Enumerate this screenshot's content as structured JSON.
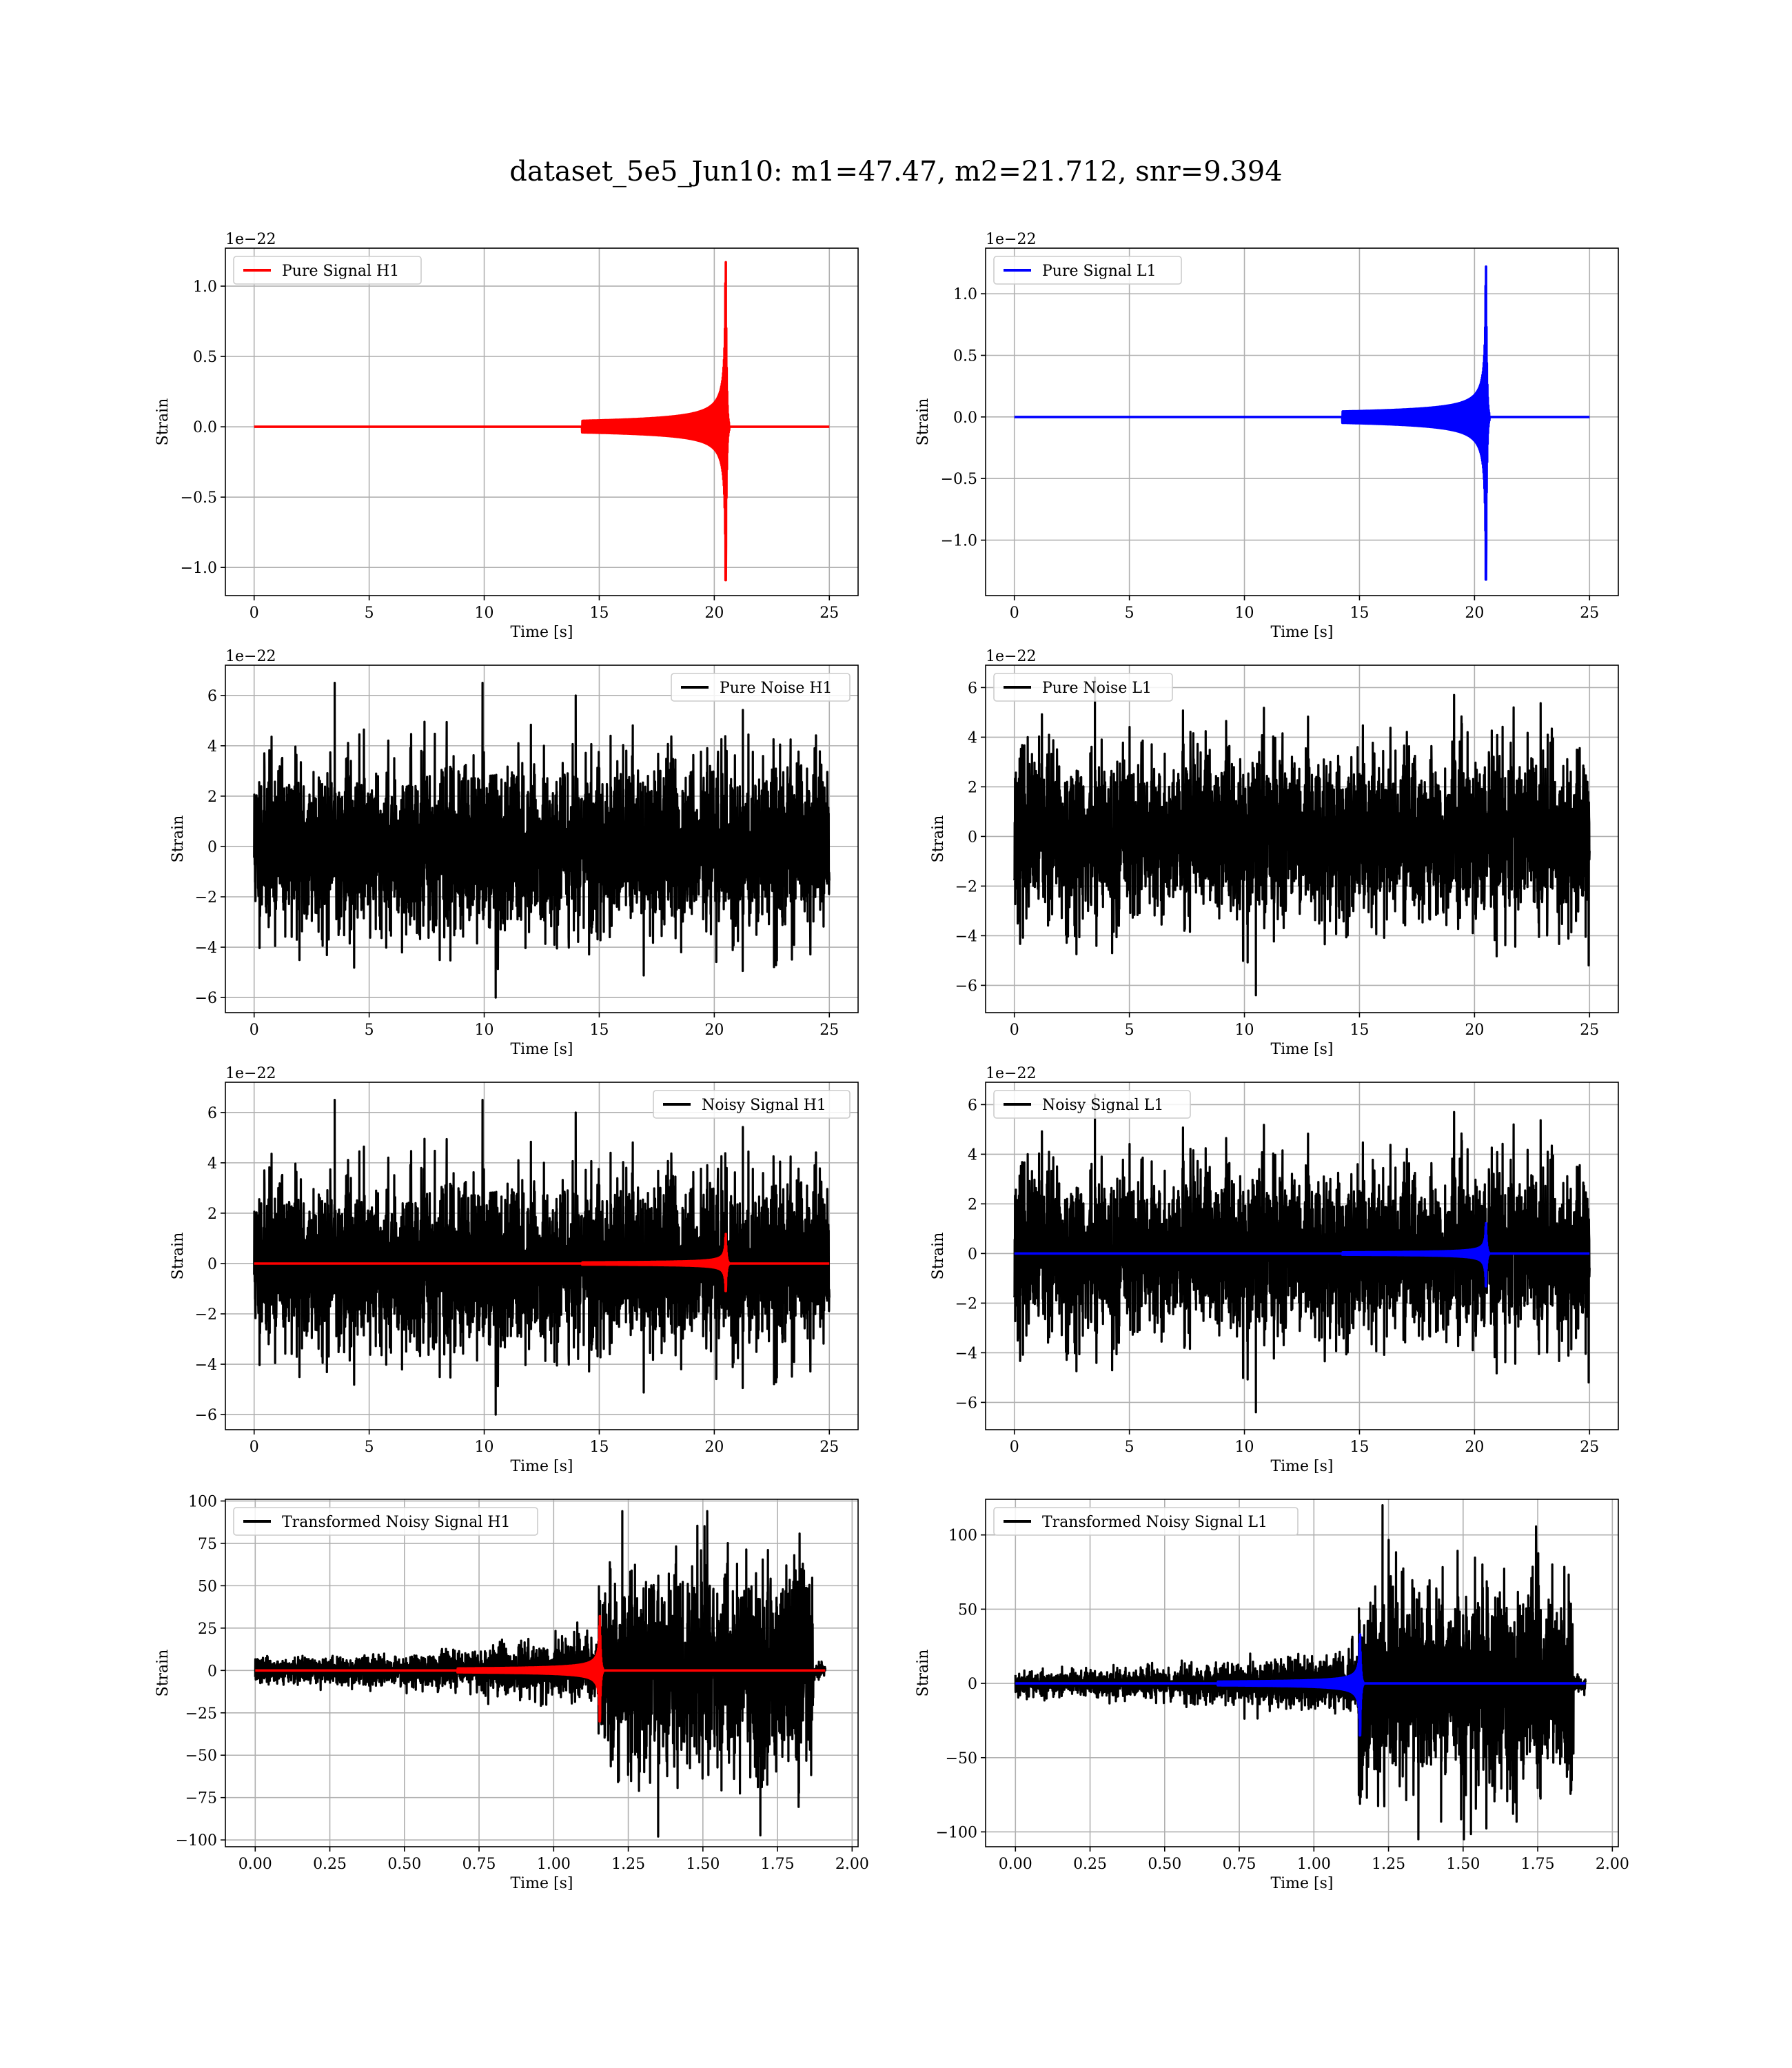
{
  "suptitle": "dataset_5e5_Jun10: m1=47.47, m2=21.712, snr=9.394",
  "colors": {
    "h1_signal": "#ff0000",
    "l1_signal": "#0000ff",
    "noise": "#000000"
  },
  "chart_data": [
    {
      "type": "line",
      "name": "pure-signal-h1",
      "xlabel": "Time [s]",
      "ylabel": "Strain",
      "offset_text": "1e−22",
      "xlim": [
        -1.25,
        26.25
      ],
      "ylim": [
        -1.2,
        1.27
      ],
      "xticks": [
        0,
        5,
        10,
        15,
        20,
        25
      ],
      "xtick_labels": [
        "0",
        "5",
        "10",
        "15",
        "20",
        "25"
      ],
      "yticks": [
        -1.0,
        -0.5,
        0.0,
        0.5,
        1.0
      ],
      "ytick_labels": [
        "−1.0",
        "−0.5",
        "0.0",
        "0.5",
        "1.0"
      ],
      "legend": {
        "position": "upper-left",
        "entries": [
          {
            "label": "Pure Signal H1",
            "color": "#ff0000"
          }
        ]
      },
      "series": [
        {
          "name": "Pure Signal H1",
          "color": "#ff0000",
          "kind": "chirp",
          "x_start": 0,
          "x_end": 25,
          "merger": 20.5,
          "peak_pos": 1.17,
          "peak_neg": -1.09
        }
      ]
    },
    {
      "type": "line",
      "name": "pure-signal-l1",
      "xlabel": "Time [s]",
      "ylabel": "Strain",
      "offset_text": "1e−22",
      "xlim": [
        -1.25,
        26.25
      ],
      "ylim": [
        -1.45,
        1.37
      ],
      "xticks": [
        0,
        5,
        10,
        15,
        20,
        25
      ],
      "xtick_labels": [
        "0",
        "5",
        "10",
        "15",
        "20",
        "25"
      ],
      "yticks": [
        -1.0,
        -0.5,
        0.0,
        0.5,
        1.0
      ],
      "ytick_labels": [
        "−1.0",
        "−0.5",
        "0.0",
        "0.5",
        "1.0"
      ],
      "legend": {
        "position": "upper-left",
        "entries": [
          {
            "label": "Pure Signal L1",
            "color": "#0000ff"
          }
        ]
      },
      "series": [
        {
          "name": "Pure Signal L1",
          "color": "#0000ff",
          "kind": "chirp",
          "x_start": 0,
          "x_end": 25,
          "merger": 20.5,
          "peak_pos": 1.22,
          "peak_neg": -1.32
        }
      ]
    },
    {
      "type": "line",
      "name": "pure-noise-h1",
      "xlabel": "Time [s]",
      "ylabel": "Strain",
      "offset_text": "1e−22",
      "xlim": [
        -1.25,
        26.25
      ],
      "ylim": [
        -6.6,
        7.2
      ],
      "xticks": [
        0,
        5,
        10,
        15,
        20,
        25
      ],
      "xtick_labels": [
        "0",
        "5",
        "10",
        "15",
        "20",
        "25"
      ],
      "yticks": [
        -6,
        -4,
        -2,
        0,
        2,
        4,
        6
      ],
      "ytick_labels": [
        "−6",
        "−4",
        "−2",
        "0",
        "2",
        "4",
        "6"
      ],
      "legend": {
        "position": "upper-right",
        "entries": [
          {
            "label": "Pure Noise H1",
            "color": "#000000"
          }
        ]
      },
      "series": [
        {
          "name": "Pure Noise H1",
          "color": "#000000",
          "kind": "noise",
          "x_start": 0,
          "x_end": 25,
          "sigma": 1.6,
          "peak_pos": 6.5,
          "peak_neg": -6.0,
          "seed": 11
        }
      ]
    },
    {
      "type": "line",
      "name": "pure-noise-l1",
      "xlabel": "Time [s]",
      "ylabel": "Strain",
      "offset_text": "1e−22",
      "xlim": [
        -1.25,
        26.25
      ],
      "ylim": [
        -7.1,
        6.9
      ],
      "xticks": [
        0,
        5,
        10,
        15,
        20,
        25
      ],
      "xtick_labels": [
        "0",
        "5",
        "10",
        "15",
        "20",
        "25"
      ],
      "yticks": [
        -6,
        -4,
        -2,
        0,
        2,
        4,
        6
      ],
      "ytick_labels": [
        "−6",
        "−4",
        "−2",
        "0",
        "2",
        "4",
        "6"
      ],
      "legend": {
        "position": "upper-left",
        "entries": [
          {
            "label": "Pure Noise L1",
            "color": "#000000"
          }
        ]
      },
      "series": [
        {
          "name": "Pure Noise L1",
          "color": "#000000",
          "kind": "noise",
          "x_start": 0,
          "x_end": 25,
          "sigma": 1.6,
          "peak_pos": 6.4,
          "peak_neg": -6.4,
          "seed": 23
        }
      ]
    },
    {
      "type": "line",
      "name": "noisy-signal-h1",
      "xlabel": "Time [s]",
      "ylabel": "Strain",
      "offset_text": "1e−22",
      "xlim": [
        -1.25,
        26.25
      ],
      "ylim": [
        -6.6,
        7.2
      ],
      "xticks": [
        0,
        5,
        10,
        15,
        20,
        25
      ],
      "xtick_labels": [
        "0",
        "5",
        "10",
        "15",
        "20",
        "25"
      ],
      "yticks": [
        -6,
        -4,
        -2,
        0,
        2,
        4,
        6
      ],
      "ytick_labels": [
        "−6",
        "−4",
        "−2",
        "0",
        "2",
        "4",
        "6"
      ],
      "legend": {
        "position": "upper-right",
        "entries": [
          {
            "label": "Noisy Signal H1",
            "color": "#000000"
          }
        ]
      },
      "series": [
        {
          "name": "Noisy Signal H1",
          "color": "#000000",
          "kind": "noise",
          "x_start": 0,
          "x_end": 25,
          "sigma": 1.6,
          "peak_pos": 6.5,
          "peak_neg": -6.0,
          "seed": 11
        },
        {
          "name": "Pure Signal H1",
          "color": "#ff0000",
          "kind": "chirp",
          "x_start": 0,
          "x_end": 25,
          "merger": 20.5,
          "peak_pos": 1.17,
          "peak_neg": -1.09
        }
      ]
    },
    {
      "type": "line",
      "name": "noisy-signal-l1",
      "xlabel": "Time [s]",
      "ylabel": "Strain",
      "offset_text": "1e−22",
      "xlim": [
        -1.25,
        26.25
      ],
      "ylim": [
        -7.1,
        6.9
      ],
      "xticks": [
        0,
        5,
        10,
        15,
        20,
        25
      ],
      "xtick_labels": [
        "0",
        "5",
        "10",
        "15",
        "20",
        "25"
      ],
      "yticks": [
        -6,
        -4,
        -2,
        0,
        2,
        4,
        6
      ],
      "ytick_labels": [
        "−6",
        "−4",
        "−2",
        "0",
        "2",
        "4",
        "6"
      ],
      "legend": {
        "position": "upper-left",
        "entries": [
          {
            "label": "Noisy Signal L1",
            "color": "#000000"
          }
        ]
      },
      "series": [
        {
          "name": "Noisy Signal L1",
          "color": "#000000",
          "kind": "noise",
          "x_start": 0,
          "x_end": 25,
          "sigma": 1.6,
          "peak_pos": 6.4,
          "peak_neg": -6.4,
          "seed": 23
        },
        {
          "name": "Pure Signal L1",
          "color": "#0000ff",
          "kind": "chirp",
          "x_start": 0,
          "x_end": 25,
          "merger": 20.5,
          "peak_pos": 1.22,
          "peak_neg": -1.32
        }
      ]
    },
    {
      "type": "line",
      "name": "transformed-noisy-signal-h1",
      "xlabel": "Time [s]",
      "ylabel": "Strain",
      "offset_text": "",
      "xlim": [
        -0.1,
        2.02
      ],
      "ylim": [
        -104,
        101
      ],
      "xticks": [
        0,
        0.25,
        0.5,
        0.75,
        1.0,
        1.25,
        1.5,
        1.75,
        2.0
      ],
      "xtick_labels": [
        "0.00",
        "0.25",
        "0.50",
        "0.75",
        "1.00",
        "1.25",
        "1.50",
        "1.75",
        "2.00"
      ],
      "yticks": [
        -100,
        -75,
        -50,
        -25,
        0,
        25,
        50,
        75,
        100
      ],
      "ytick_labels": [
        "−100",
        "−75",
        "−50",
        "−25",
        "0",
        "25",
        "50",
        "75",
        "100"
      ],
      "legend": {
        "position": "upper-left",
        "entries": [
          {
            "label": "Transformed Noisy Signal H1",
            "color": "#000000"
          }
        ]
      },
      "series": [
        {
          "name": "Transformed Noisy Signal H1",
          "color": "#000000",
          "kind": "whitened",
          "x_start": 0,
          "x_end": 1.91,
          "step": 1.15,
          "tail": 1.87,
          "sigma_pre": 3.5,
          "sigma_post": 28,
          "peak_pos": 94,
          "peak_neg": -98,
          "seed": 37
        },
        {
          "name": "Pure Signal H1",
          "color": "#ff0000",
          "kind": "chirp",
          "x_start": 0,
          "x_end": 1.91,
          "merger": 1.155,
          "peak_pos": 32,
          "peak_neg": -30
        }
      ]
    },
    {
      "type": "line",
      "name": "transformed-noisy-signal-l1",
      "xlabel": "Time [s]",
      "ylabel": "Strain",
      "offset_text": "",
      "xlim": [
        -0.1,
        2.02
      ],
      "ylim": [
        -110,
        124
      ],
      "xticks": [
        0,
        0.25,
        0.5,
        0.75,
        1.0,
        1.25,
        1.5,
        1.75,
        2.0
      ],
      "xtick_labels": [
        "0.00",
        "0.25",
        "0.50",
        "0.75",
        "1.00",
        "1.25",
        "1.50",
        "1.75",
        "2.00"
      ],
      "yticks": [
        -100,
        -50,
        0,
        50,
        100
      ],
      "ytick_labels": [
        "−100",
        "−50",
        "0",
        "50",
        "100"
      ],
      "legend": {
        "position": "upper-left",
        "entries": [
          {
            "label": "Transformed Noisy Signal L1",
            "color": "#000000"
          }
        ]
      },
      "series": [
        {
          "name": "Transformed Noisy Signal L1",
          "color": "#000000",
          "kind": "whitened",
          "x_start": 0,
          "x_end": 1.91,
          "step": 1.15,
          "tail": 1.87,
          "sigma_pre": 4,
          "sigma_post": 32,
          "peak_pos": 120,
          "peak_neg": -105,
          "seed": 53
        },
        {
          "name": "Pure Signal L1",
          "color": "#0000ff",
          "kind": "chirp",
          "x_start": 0,
          "x_end": 1.91,
          "merger": 1.155,
          "peak_pos": 33,
          "peak_neg": -35
        }
      ]
    }
  ]
}
